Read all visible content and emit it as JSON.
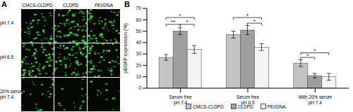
{
  "panel_a": {
    "label": "A",
    "columns": [
      "CMCS-CLDPD",
      "CLDPD",
      "PEI/DNA"
    ],
    "rows": [
      "pH 7.4",
      "pH 6.5",
      "20% serum\npH 7.4"
    ]
  },
  "chart_data": {
    "type": "bar",
    "title": "B",
    "ylabel": "pEGFP expression (%)",
    "categories": [
      "Serum free\npH 7.4",
      "Serum free\npH 6.5",
      "With 20% serum\npH 7.4"
    ],
    "series": [
      {
        "name": "CMCS-CLDPD",
        "color": "#c4c4c4",
        "values": [
          27,
          47,
          22
        ],
        "errors": [
          2.5,
          3,
          3
        ]
      },
      {
        "name": "CLDPD",
        "color": "#9e9e9e",
        "values": [
          50,
          51,
          11
        ],
        "errors": [
          3,
          4,
          2
        ]
      },
      {
        "name": "PEI/DNA",
        "color": "#f4f4f4",
        "values": [
          34,
          36,
          10
        ],
        "errors": [
          3.5,
          3,
          3
        ]
      }
    ],
    "ylim": [
      0,
      70
    ],
    "yticks": [
      0,
      10,
      20,
      30,
      40,
      50,
      60,
      70
    ],
    "grid": false,
    "legend": "bottom",
    "annotations": [
      {
        "text": "**",
        "category": 0,
        "from": 0,
        "to": 1,
        "y": 56
      },
      {
        "text": "*",
        "category": 0,
        "from": 1,
        "to": 2,
        "y": 56
      },
      {
        "text": "*",
        "category": 0,
        "from": 0,
        "to": 2,
        "y": 62
      },
      {
        "text": "*",
        "category": 1,
        "from": 0,
        "to": 2,
        "y": 62
      },
      {
        "text": "*",
        "category": 1,
        "from": 1,
        "to": 2,
        "y": 57
      },
      {
        "text": "*",
        "category": 2,
        "from": 0,
        "to": 2,
        "y": 31
      },
      {
        "text": "*",
        "category": 2,
        "from": 0,
        "to": 1,
        "y": 27
      }
    ]
  }
}
